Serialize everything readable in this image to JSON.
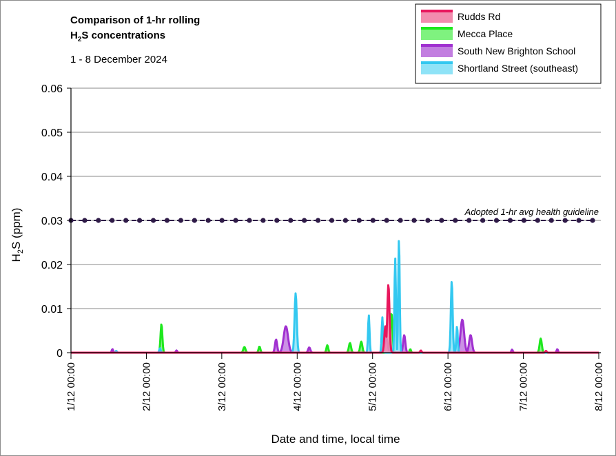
{
  "chart_data": {
    "type": "area",
    "title_line1": "Comparison of 1-hr rolling",
    "title_line2_prefix": "H",
    "title_line2_sub": "2",
    "title_line2_suffix": "S concentrations",
    "subtitle": "1 - 8 December 2024",
    "xlabel": "Date and time, local time",
    "ylabel_prefix": "H",
    "ylabel_sub": "2",
    "ylabel_suffix": "S (ppm)",
    "ylim": [
      0,
      0.06
    ],
    "yticks": [
      0,
      0.01,
      0.02,
      0.03,
      0.04,
      0.05,
      0.06
    ],
    "ytick_labels": [
      "0",
      "0.01",
      "0.02",
      "0.03",
      "0.04",
      "0.05",
      "0.06"
    ],
    "xlim": [
      0,
      7
    ],
    "xticks": [
      0,
      1,
      2,
      3,
      4,
      5,
      6,
      7
    ],
    "xtick_labels": [
      "1/12 00:00",
      "2/12 00:00",
      "3/12 00:00",
      "4/12 00:00",
      "5/12 00:00",
      "6/12 00:00",
      "7/12 00:00",
      "8/12 00:00"
    ],
    "x_unit": "days from 1/12 00:00",
    "grid": "horizontal",
    "legend_position": "top-right",
    "guideline": {
      "label": "Adopted 1-hr avg health guideline",
      "value": 0.03,
      "color": "#2e1a47"
    },
    "series": [
      {
        "name": "Rudds Rd",
        "color": "#e8175d",
        "fill": "#f28cae",
        "peaks": [
          [
            4.21,
            0.0155,
            0.03
          ],
          [
            4.17,
            0.006,
            0.03
          ],
          [
            4.64,
            0.0005,
            0.02
          ],
          [
            6.3,
            0.0004,
            0.02
          ]
        ]
      },
      {
        "name": "Mecca Place",
        "color": "#1ee81e",
        "fill": "#7ff27f",
        "peaks": [
          [
            1.2,
            0.0065,
            0.025
          ],
          [
            2.3,
            0.0013,
            0.03
          ],
          [
            2.5,
            0.0014,
            0.025
          ],
          [
            3.4,
            0.0017,
            0.025
          ],
          [
            3.7,
            0.0022,
            0.03
          ],
          [
            3.85,
            0.0025,
            0.03
          ],
          [
            4.25,
            0.009,
            0.03
          ],
          [
            4.5,
            0.0008,
            0.02
          ],
          [
            6.23,
            0.0032,
            0.03
          ]
        ]
      },
      {
        "name": "South New Brighton School",
        "color": "#a030d0",
        "fill": "#c27ee0",
        "peaks": [
          [
            2.85,
            0.006,
            0.06
          ],
          [
            2.72,
            0.003,
            0.03
          ],
          [
            3.16,
            0.0012,
            0.03
          ],
          [
            4.42,
            0.004,
            0.03
          ],
          [
            4.18,
            0.0035,
            0.04
          ],
          [
            5.19,
            0.0075,
            0.05
          ],
          [
            5.3,
            0.004,
            0.04
          ],
          [
            0.55,
            0.0008,
            0.02
          ],
          [
            1.4,
            0.0005,
            0.02
          ],
          [
            5.85,
            0.0007,
            0.02
          ],
          [
            6.45,
            0.0008,
            0.02
          ]
        ]
      },
      {
        "name": "Shortland Street (southeast)",
        "color": "#33c8f0",
        "fill": "#8fe3f7",
        "peaks": [
          [
            0.6,
            0.0004,
            0.02
          ],
          [
            1.18,
            0.001,
            0.02
          ],
          [
            2.98,
            0.0135,
            0.03
          ],
          [
            3.95,
            0.0085,
            0.02
          ],
          [
            4.13,
            0.008,
            0.02
          ],
          [
            4.3,
            0.0215,
            0.02
          ],
          [
            4.35,
            0.026,
            0.02
          ],
          [
            5.05,
            0.0163,
            0.025
          ],
          [
            5.12,
            0.006,
            0.02
          ]
        ]
      }
    ]
  }
}
